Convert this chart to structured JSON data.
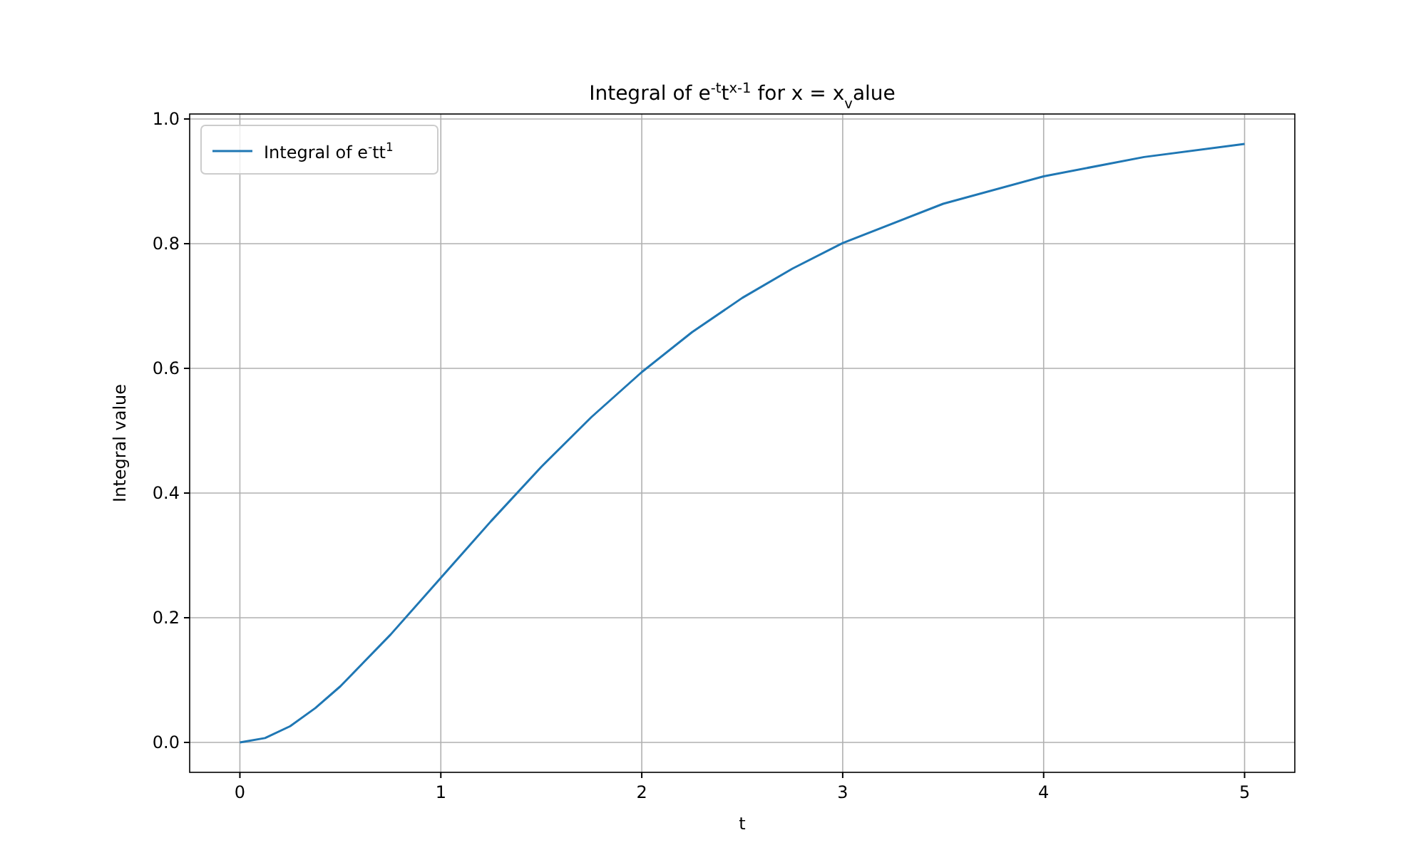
{
  "chart_data": {
    "type": "line",
    "title": "Integral of e$^{-t}$t$^{x-1}$ for x = x$_{v}$alue",
    "xlabel": "t",
    "ylabel": "Integral value",
    "x": [
      0,
      0.125,
      0.25,
      0.375,
      0.5,
      0.75,
      1,
      1.25,
      1.5,
      1.75,
      2,
      2.25,
      2.5,
      2.75,
      3,
      3.5,
      4,
      4.5,
      5
    ],
    "series": [
      {
        "name": "Integral of e$^{-}$tt$^{1}$",
        "color": "#1f77b4",
        "values": [
          0,
          0.007,
          0.026,
          0.055,
          0.09,
          0.173,
          0.264,
          0.355,
          0.442,
          0.522,
          0.594,
          0.658,
          0.713,
          0.76,
          0.801,
          0.864,
          0.908,
          0.939,
          0.96
        ]
      }
    ],
    "xlim": [
      -0.25,
      5.25
    ],
    "ylim": [
      -0.048,
      1.008
    ],
    "xticks": [
      0,
      1,
      2,
      3,
      4,
      5
    ],
    "yticks": [
      {
        "value": 0,
        "label": "0.0"
      },
      {
        "value": 0.2,
        "label": "0.2"
      },
      {
        "value": 0.4,
        "label": "0.4"
      },
      {
        "value": 0.6,
        "label": "0.6"
      },
      {
        "value": 0.8,
        "label": "0.8"
      },
      {
        "value": 1,
        "label": "1.0"
      }
    ],
    "grid": true,
    "legend": "top left",
    "marker": "none",
    "line_style": "solid"
  }
}
